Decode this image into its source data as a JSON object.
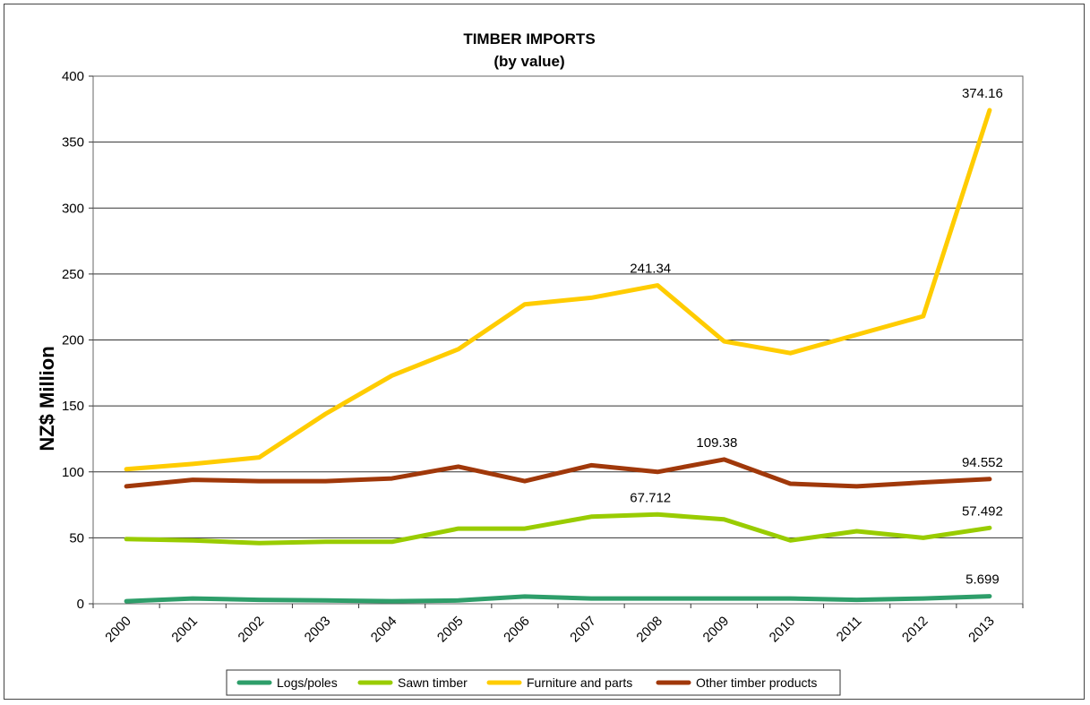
{
  "chart_data": {
    "type": "line",
    "title": "TIMBER IMPORTS",
    "subtitle": "(by value)",
    "ylabel": "NZ$ Million",
    "xlabel": "",
    "ylim": [
      0,
      400
    ],
    "yticks": [
      0,
      50,
      100,
      150,
      200,
      250,
      300,
      350,
      400
    ],
    "grid": true,
    "legend_position": "bottom",
    "categories": [
      "2000",
      "2001",
      "2002",
      "2003",
      "2004",
      "2005",
      "2006",
      "2007",
      "2008",
      "2009",
      "2010",
      "2011",
      "2012",
      "2013"
    ],
    "series": [
      {
        "name": "Logs/poles",
        "color": "#2e9e6a",
        "values": [
          2,
          4,
          3,
          2.5,
          2,
          2.5,
          5.5,
          4,
          4,
          4,
          4,
          3,
          4,
          5.699
        ],
        "labels": [
          {
            "index": 13,
            "text": "5.699"
          }
        ]
      },
      {
        "name": "Sawn timber",
        "color": "#99cc00",
        "values": [
          49,
          48,
          46,
          47,
          47,
          57,
          57,
          66,
          67.712,
          64,
          48,
          55,
          50,
          57.492
        ],
        "labels": [
          {
            "index": 8,
            "text": "67.712"
          },
          {
            "index": 13,
            "text": "57.492"
          }
        ]
      },
      {
        "name": "Furniture and parts",
        "color": "#ffcc00",
        "values": [
          102,
          106,
          111,
          144,
          173,
          193,
          227,
          232,
          241.34,
          199,
          190,
          204,
          218,
          374.16
        ],
        "labels": [
          {
            "index": 8,
            "text": "241.34"
          },
          {
            "index": 13,
            "text": "374.16"
          }
        ]
      },
      {
        "name": "Other timber products",
        "color": "#a0380a",
        "values": [
          89,
          94,
          93,
          93,
          95,
          104,
          93,
          105,
          100,
          109.38,
          91,
          89,
          92,
          94.552
        ],
        "labels": [
          {
            "index": 9,
            "text": "109.38"
          },
          {
            "index": 13,
            "text": "94.552"
          }
        ]
      }
    ]
  }
}
